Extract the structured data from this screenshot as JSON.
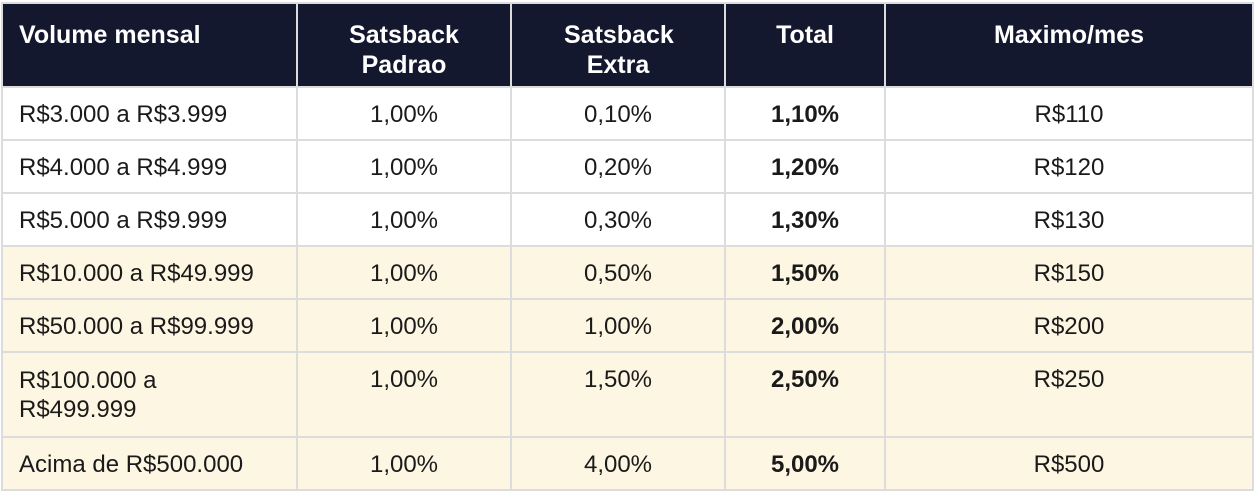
{
  "table": {
    "headers": [
      "Volume mensal",
      "Satsback Padrao",
      "Satsback Extra",
      "Total",
      "Maximo/mes"
    ],
    "highlight_color": "#fdf6e2",
    "header_color": "#14182f",
    "rows": [
      {
        "volume": "R$3.000 a R$3.999",
        "padrao": "1,00%",
        "extra": "0,10%",
        "total": "1,10%",
        "maximo": "R$110",
        "highlight": false
      },
      {
        "volume": "R$4.000 a R$4.999",
        "padrao": "1,00%",
        "extra": "0,20%",
        "total": "1,20%",
        "maximo": "R$120",
        "highlight": false
      },
      {
        "volume": "R$5.000 a R$9.999",
        "padrao": "1,00%",
        "extra": "0,30%",
        "total": "1,30%",
        "maximo": "R$130",
        "highlight": false
      },
      {
        "volume": "R$10.000 a R$49.999",
        "padrao": "1,00%",
        "extra": "0,50%",
        "total": "1,50%",
        "maximo": "R$150",
        "highlight": true
      },
      {
        "volume": "R$50.000 a R$99.999",
        "padrao": "1,00%",
        "extra": "1,00%",
        "total": "2,00%",
        "maximo": "R$200",
        "highlight": true
      },
      {
        "volume": "R$100.000 a R$499.999",
        "padrao": "1,00%",
        "extra": "1,50%",
        "total": "2,50%",
        "maximo": "R$250",
        "highlight": true
      },
      {
        "volume": "Acima de R$500.000",
        "padrao": "1,00%",
        "extra": "4,00%",
        "total": "5,00%",
        "maximo": "R$500",
        "highlight": true
      }
    ]
  }
}
